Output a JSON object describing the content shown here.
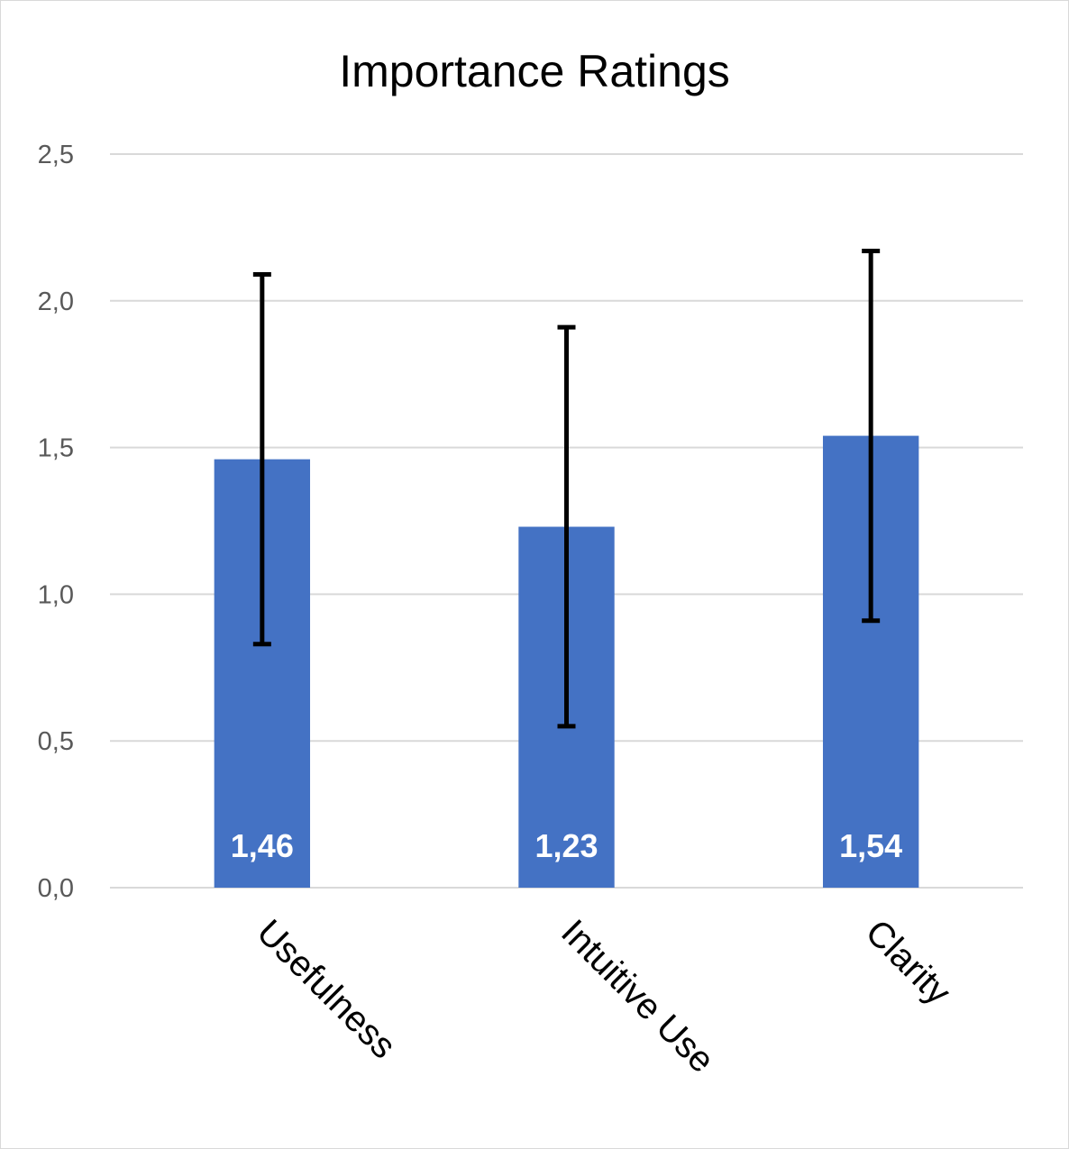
{
  "chart_data": {
    "type": "bar",
    "title": "Importance Ratings",
    "xlabel": "",
    "ylabel": "",
    "categories": [
      "Usefulness",
      "Intuitive Use",
      "Clarity"
    ],
    "values": [
      1.46,
      1.23,
      1.54
    ],
    "value_labels": [
      "1,46",
      "1,23",
      "1,54"
    ],
    "error_bars": [
      {
        "low": 0.83,
        "high": 2.09
      },
      {
        "low": 0.55,
        "high": 1.91
      },
      {
        "low": 0.91,
        "high": 2.17
      }
    ],
    "ylim": [
      0,
      2.5
    ],
    "yticks": [
      {
        "value": 0.0,
        "label": "0,0"
      },
      {
        "value": 0.5,
        "label": "0,5"
      },
      {
        "value": 1.0,
        "label": "1,0"
      },
      {
        "value": 1.5,
        "label": "1,5"
      },
      {
        "value": 2.0,
        "label": "2,0"
      },
      {
        "value": 2.5,
        "label": "2,5"
      }
    ],
    "grid": true,
    "legend": "none",
    "colors": {
      "bar": "#4472c4",
      "error_bar": "#000000",
      "grid": "#d9d9d9",
      "value_label": "#ffffff"
    }
  }
}
